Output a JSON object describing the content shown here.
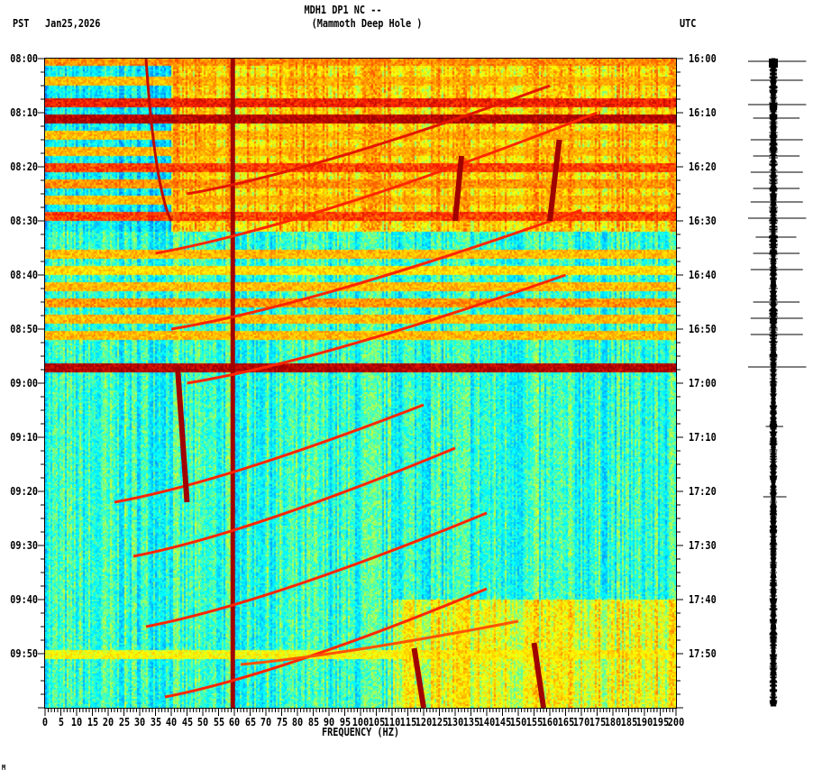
{
  "header": {
    "title": "MDH1 DP1 NC --",
    "subtitle": "(Mammoth Deep Hole )",
    "left_tz": "PST",
    "date": "Jan25,2026",
    "right_tz": "UTC"
  },
  "footer_mark": "M",
  "chart_data": {
    "type": "heatmap",
    "title": "MDH1 DP1 NC -- (Mammoth Deep Hole )",
    "xlabel": "FREQUENCY (HZ)",
    "ylabel_left": "PST",
    "ylabel_right": "UTC",
    "xlim": [
      0,
      200
    ],
    "ylim_minutes": [
      0,
      120
    ],
    "x_ticks": [
      "0",
      "5",
      "10",
      "15",
      "20",
      "25",
      "30",
      "35",
      "40",
      "45",
      "50",
      "55",
      "60",
      "65",
      "70",
      "75",
      "80",
      "85",
      "90",
      "95",
      "100",
      "105",
      "110",
      "115",
      "120",
      "125",
      "130",
      "135",
      "140",
      "145",
      "150",
      "155",
      "160",
      "165",
      "170",
      "175",
      "180",
      "185",
      "190",
      "195",
      "200"
    ],
    "y_ticks_left": [
      "08:00",
      "08:10",
      "08:20",
      "08:30",
      "08:40",
      "08:50",
      "09:00",
      "09:10",
      "09:20",
      "09:30",
      "09:40",
      "09:50"
    ],
    "y_ticks_right": [
      "16:00",
      "16:10",
      "16:20",
      "16:30",
      "16:40",
      "16:50",
      "17:00",
      "17:10",
      "17:20",
      "17:30",
      "17:40",
      "17:50"
    ],
    "colormap": [
      "#0050ff",
      "#00b4ff",
      "#00ffff",
      "#80ff80",
      "#ffff00",
      "#ffa000",
      "#ff2000",
      "#a00000"
    ],
    "regions": [
      {
        "t_start": 0,
        "t_end": 32,
        "f_start": 0,
        "f_end": 40,
        "level": 0.25
      },
      {
        "t_start": 0,
        "t_end": 32,
        "f_start": 40,
        "f_end": 200,
        "level": 0.62
      },
      {
        "t_start": 32,
        "t_end": 120,
        "f_start": 0,
        "f_end": 200,
        "level": 0.32
      },
      {
        "t_start": 100,
        "t_end": 120,
        "f_start": 110,
        "f_end": 200,
        "level": 0.55
      }
    ],
    "bands": [
      {
        "t": 0.5,
        "level": 0.75
      },
      {
        "t": 4,
        "level": 0.7
      },
      {
        "t": 8,
        "level": 0.9
      },
      {
        "t": 11,
        "level": 1.0
      },
      {
        "t": 14,
        "level": 0.7
      },
      {
        "t": 17,
        "level": 0.7
      },
      {
        "t": 20,
        "level": 0.85
      },
      {
        "t": 23,
        "level": 0.75
      },
      {
        "t": 26,
        "level": 0.7
      },
      {
        "t": 29,
        "level": 0.85
      },
      {
        "t": 36,
        "level": 0.7
      },
      {
        "t": 39,
        "level": 0.65
      },
      {
        "t": 42,
        "level": 0.7
      },
      {
        "t": 45,
        "level": 0.75
      },
      {
        "t": 48,
        "level": 0.7
      },
      {
        "t": 51,
        "level": 0.7
      },
      {
        "t": 57,
        "level": 1.0
      },
      {
        "t": 110,
        "level": 0.6
      }
    ],
    "lines": [
      {
        "name": "60hz-line",
        "f": [
          59.5,
          59.5
        ],
        "t": [
          0,
          120
        ],
        "level": 1.0
      },
      {
        "name": "chirp",
        "f": [
          32,
          40
        ],
        "t": [
          0,
          30
        ],
        "level": 0.95
      },
      {
        "name": "chirp",
        "f": [
          45,
          160
        ],
        "t": [
          25,
          5
        ],
        "level": 0.9
      },
      {
        "name": "chirp",
        "f": [
          35,
          175
        ],
        "t": [
          36,
          10
        ],
        "level": 0.85
      },
      {
        "name": "chirp",
        "f": [
          40,
          170
        ],
        "t": [
          50,
          28
        ],
        "level": 0.85
      },
      {
        "name": "chirp",
        "f": [
          45,
          165
        ],
        "t": [
          60,
          40
        ],
        "level": 0.85
      },
      {
        "name": "chirp",
        "f": [
          22,
          120
        ],
        "t": [
          82,
          64
        ],
        "level": 0.85
      },
      {
        "name": "chirp",
        "f": [
          28,
          130
        ],
        "t": [
          92,
          72
        ],
        "level": 0.85
      },
      {
        "name": "chirp",
        "f": [
          32,
          140
        ],
        "t": [
          105,
          84
        ],
        "level": 0.85
      },
      {
        "name": "chirp",
        "f": [
          38,
          140
        ],
        "t": [
          118,
          98
        ],
        "level": 0.85
      },
      {
        "name": "chirp",
        "f": [
          62,
          150
        ],
        "t": [
          112,
          104
        ],
        "level": 0.8
      },
      {
        "name": "burst",
        "f": [
          132,
          130
        ],
        "t": [
          18,
          30
        ],
        "level": 1.0
      },
      {
        "name": "burst",
        "f": [
          163,
          160
        ],
        "t": [
          15,
          30
        ],
        "level": 1.0
      },
      {
        "name": "burst",
        "f": [
          117,
          120
        ],
        "t": [
          109,
          120
        ],
        "level": 1.0
      },
      {
        "name": "burst",
        "f": [
          155,
          158
        ],
        "t": [
          108,
          120
        ],
        "level": 1.0
      },
      {
        "name": "burst",
        "f": [
          42,
          45
        ],
        "t": [
          57,
          82
        ],
        "level": 1.0
      }
    ],
    "trace_spikes": [
      {
        "t": 0.5,
        "amp": 1.0
      },
      {
        "t": 4,
        "amp": 0.9
      },
      {
        "t": 8.5,
        "amp": 1.0
      },
      {
        "t": 11,
        "amp": 0.8
      },
      {
        "t": 15,
        "amp": 0.9
      },
      {
        "t": 18,
        "amp": 0.8
      },
      {
        "t": 21,
        "amp": 0.9
      },
      {
        "t": 24,
        "amp": 0.8
      },
      {
        "t": 26.5,
        "amp": 0.9
      },
      {
        "t": 29.5,
        "amp": 1.0
      },
      {
        "t": 33,
        "amp": 0.7
      },
      {
        "t": 36,
        "amp": 0.8
      },
      {
        "t": 39,
        "amp": 0.9
      },
      {
        "t": 45,
        "amp": 0.8
      },
      {
        "t": 48,
        "amp": 0.9
      },
      {
        "t": 51,
        "amp": 0.9
      },
      {
        "t": 57,
        "amp": 1.0
      },
      {
        "t": 68,
        "amp": 0.3
      },
      {
        "t": 81,
        "amp": 0.4
      }
    ]
  }
}
